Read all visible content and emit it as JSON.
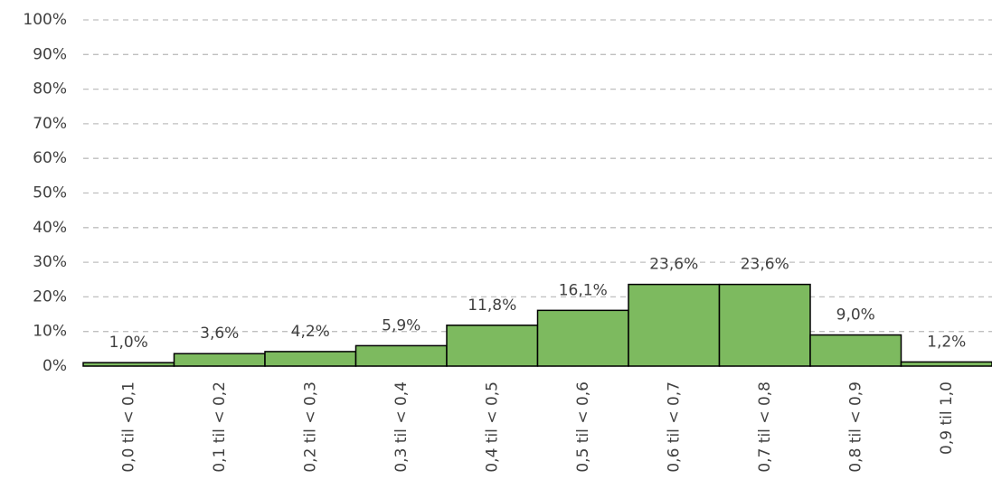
{
  "chart_data": {
    "type": "bar",
    "categories": [
      "0,0 til < 0,1",
      "0,1 til < 0,2",
      "0,2 til < 0,3",
      "0,3 til < 0,4",
      "0,4 til < 0,5",
      "0,5 til < 0,6",
      "0,6 til < 0,7",
      "0,7 til < 0,8",
      "0,8 til < 0,9",
      "0,9 til 1,0"
    ],
    "values": [
      1.0,
      3.6,
      4.2,
      5.9,
      11.8,
      16.1,
      23.6,
      23.6,
      9.0,
      1.2
    ],
    "value_labels": [
      "1,0%",
      "3,6%",
      "4,2%",
      "5,9%",
      "11,8%",
      "16,1%",
      "23,6%",
      "23,6%",
      "9,0%",
      "1,2%"
    ],
    "color": "#7dba5f",
    "ylim": [
      0,
      100
    ],
    "yticks": [
      {
        "value": 0,
        "label": "0%"
      },
      {
        "value": 10,
        "label": "10%"
      },
      {
        "value": 20,
        "label": "20%"
      },
      {
        "value": 30,
        "label": "30%"
      },
      {
        "value": 40,
        "label": "40%"
      },
      {
        "value": 50,
        "label": "50%"
      },
      {
        "value": 60,
        "label": "60%"
      },
      {
        "value": 70,
        "label": "70%"
      },
      {
        "value": 80,
        "label": "80%"
      },
      {
        "value": 90,
        "label": "90%"
      },
      {
        "value": 100,
        "label": "100%"
      }
    ],
    "grid": true
  }
}
